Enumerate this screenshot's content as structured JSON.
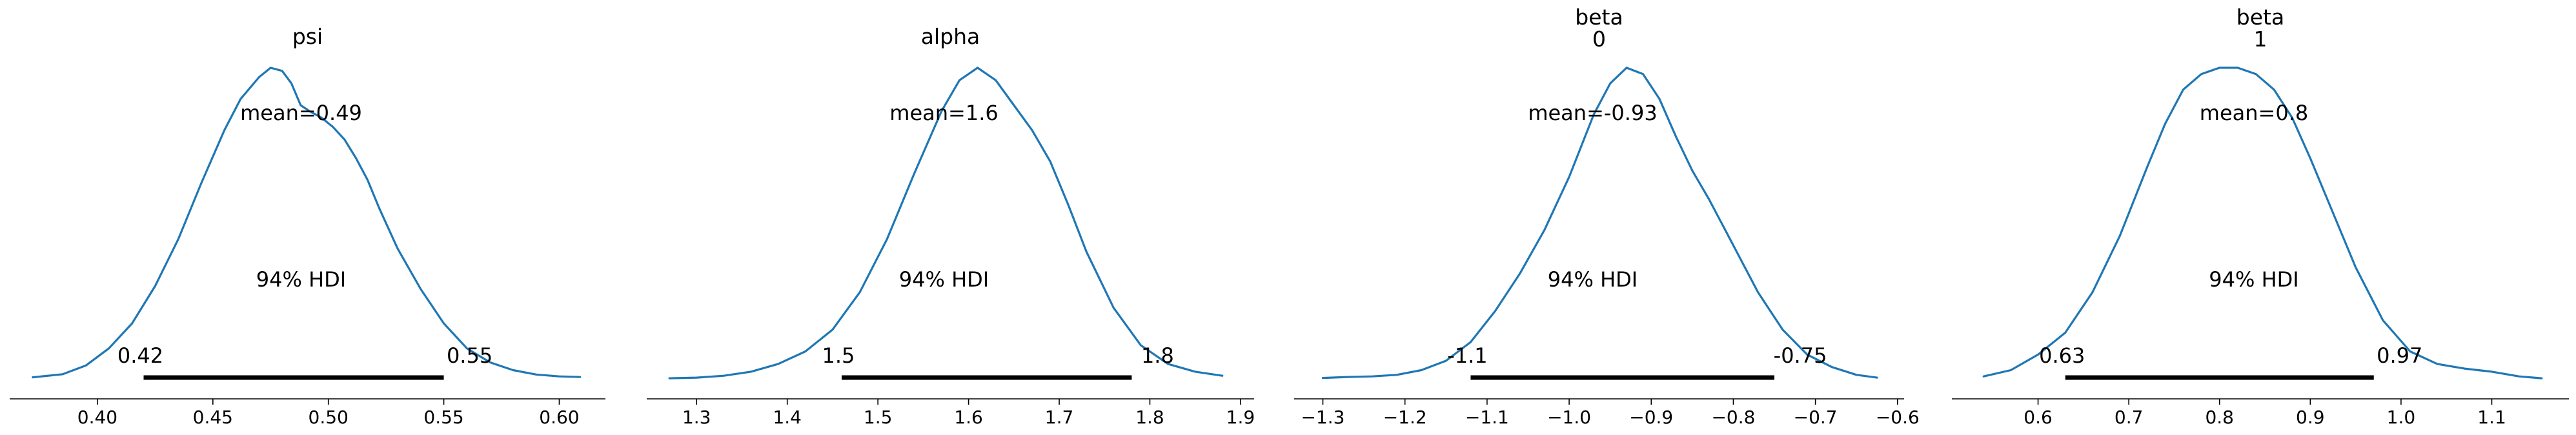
{
  "chart_data": [
    {
      "type": "posterior",
      "title_lines": [
        "psi"
      ],
      "mean_label": "mean=0.49",
      "hdi_label": "94% HDI",
      "hdi": [
        0.42,
        0.55
      ],
      "hdi_labels": [
        "0.42",
        "0.55"
      ],
      "xlim": [
        0.362,
        0.62
      ],
      "xticks": [
        0.4,
        0.45,
        0.5,
        0.55,
        0.6
      ],
      "xtick_labels": [
        "0.40",
        "0.45",
        "0.50",
        "0.55",
        "0.60"
      ],
      "density": {
        "x": [
          0.372,
          0.385,
          0.395,
          0.405,
          0.415,
          0.425,
          0.435,
          0.445,
          0.455,
          0.462,
          0.47,
          0.475,
          0.48,
          0.484,
          0.488,
          0.492,
          0.497,
          0.502,
          0.507,
          0.512,
          0.517,
          0.522,
          0.53,
          0.54,
          0.55,
          0.56,
          0.57,
          0.58,
          0.59,
          0.6,
          0.609
        ],
        "y": [
          0.007,
          0.017,
          0.045,
          0.1,
          0.18,
          0.3,
          0.45,
          0.63,
          0.8,
          0.9,
          0.97,
          1.0,
          0.99,
          0.95,
          0.88,
          0.86,
          0.84,
          0.81,
          0.77,
          0.71,
          0.64,
          0.55,
          0.42,
          0.29,
          0.18,
          0.1,
          0.055,
          0.03,
          0.016,
          0.01,
          0.008
        ]
      }
    },
    {
      "type": "posterior",
      "title_lines": [
        "alpha"
      ],
      "mean_label": "mean=1.6",
      "hdi_label": "94% HDI",
      "hdi": [
        1.46,
        1.78
      ],
      "hdi_labels": [
        "1.5",
        "1.8"
      ],
      "xlim": [
        1.245,
        1.915
      ],
      "xticks": [
        1.3,
        1.4,
        1.5,
        1.6,
        1.7,
        1.8,
        1.9
      ],
      "xtick_labels": [
        "1.3",
        "1.4",
        "1.5",
        "1.6",
        "1.7",
        "1.8",
        "1.9"
      ],
      "density": {
        "x": [
          1.27,
          1.3,
          1.33,
          1.36,
          1.39,
          1.42,
          1.45,
          1.48,
          1.51,
          1.54,
          1.57,
          1.59,
          1.61,
          1.63,
          1.65,
          1.67,
          1.69,
          1.71,
          1.73,
          1.76,
          1.79,
          1.82,
          1.85,
          1.88
        ],
        "y": [
          0.004,
          0.006,
          0.012,
          0.025,
          0.05,
          0.09,
          0.16,
          0.28,
          0.45,
          0.66,
          0.86,
          0.96,
          1.0,
          0.96,
          0.88,
          0.8,
          0.7,
          0.56,
          0.41,
          0.23,
          0.11,
          0.05,
          0.025,
          0.012
        ]
      }
    },
    {
      "type": "posterior",
      "title_lines": [
        "beta",
        "0"
      ],
      "mean_label": "mean=-0.93",
      "hdi_label": "94% HDI",
      "hdi": [
        -1.12,
        -0.75
      ],
      "hdi_labels": [
        "-1.1",
        "-0.75"
      ],
      "xlim": [
        -1.335,
        -0.592
      ],
      "xticks": [
        -1.3,
        -1.2,
        -1.1,
        -1.0,
        -0.9,
        -0.8,
        -0.7,
        -0.6
      ],
      "xtick_labels": [
        "−1.3",
        "−1.2",
        "−1.1",
        "−1.0",
        "−0.9",
        "−0.8",
        "−0.7",
        "−0.6"
      ],
      "density": {
        "x": [
          -1.3,
          -1.27,
          -1.24,
          -1.21,
          -1.18,
          -1.15,
          -1.12,
          -1.09,
          -1.06,
          -1.03,
          -1.0,
          -0.97,
          -0.95,
          -0.93,
          -0.91,
          -0.89,
          -0.87,
          -0.85,
          -0.83,
          -0.8,
          -0.77,
          -0.74,
          -0.71,
          -0.68,
          -0.65,
          -0.625
        ],
        "y": [
          0.005,
          0.008,
          0.01,
          0.015,
          0.03,
          0.06,
          0.12,
          0.22,
          0.34,
          0.48,
          0.65,
          0.85,
          0.95,
          1.0,
          0.98,
          0.9,
          0.78,
          0.67,
          0.58,
          0.43,
          0.28,
          0.16,
          0.08,
          0.04,
          0.015,
          0.006
        ]
      }
    },
    {
      "type": "posterior",
      "title_lines": [
        "beta",
        "1"
      ],
      "mean_label": "mean=0.8",
      "hdi_label": "94% HDI",
      "hdi": [
        0.63,
        0.97
      ],
      "hdi_labels": [
        "0.63",
        "0.97"
      ],
      "xlim": [
        0.505,
        1.185
      ],
      "xticks": [
        0.6,
        0.7,
        0.8,
        0.9,
        1.0,
        1.1
      ],
      "xtick_labels": [
        "0.6",
        "0.7",
        "0.8",
        "0.9",
        "1.0",
        "1.1"
      ],
      "density": {
        "x": [
          0.54,
          0.57,
          0.6,
          0.63,
          0.66,
          0.69,
          0.72,
          0.74,
          0.76,
          0.78,
          0.8,
          0.82,
          0.84,
          0.86,
          0.88,
          0.9,
          0.92,
          0.95,
          0.98,
          1.01,
          1.04,
          1.07,
          1.1,
          1.13,
          1.155
        ],
        "y": [
          0.01,
          0.03,
          0.08,
          0.15,
          0.28,
          0.46,
          0.68,
          0.82,
          0.93,
          0.98,
          1.0,
          1.0,
          0.98,
          0.93,
          0.84,
          0.71,
          0.57,
          0.36,
          0.19,
          0.09,
          0.05,
          0.035,
          0.025,
          0.01,
          0.004
        ]
      }
    }
  ]
}
